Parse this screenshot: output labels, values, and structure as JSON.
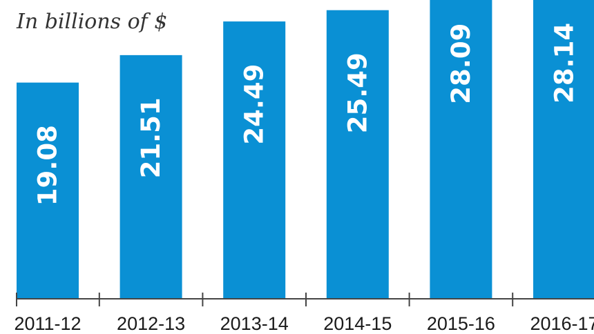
{
  "chart_data": {
    "type": "bar",
    "unit_label": "In billions of $",
    "categories": [
      "2011-12",
      "2012-13",
      "2013-14",
      "2014-15",
      "2015-16",
      "2016-17"
    ],
    "values": [
      19.08,
      21.51,
      24.49,
      25.49,
      28.09,
      28.14
    ],
    "value_labels": [
      "19.08",
      "21.51",
      "24.49",
      "25.49",
      "28.09",
      "28.14"
    ],
    "bar_color": "#0a90d4",
    "axis_color": "#444444",
    "grid": false,
    "legend": "none"
  }
}
